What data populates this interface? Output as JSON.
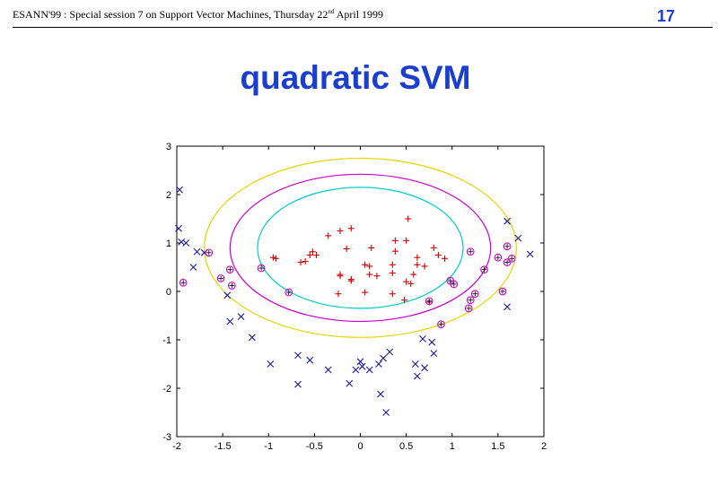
{
  "header": {
    "left_main": "ESANN'99 :  Special session 7 on Support Vector Machines, Thursday 22",
    "left_sup": "nd",
    "left_tail": " April 1999",
    "page_number": "17"
  },
  "slide": {
    "title": "quadratic SVM"
  },
  "chart_data": {
    "type": "scatter",
    "title": "",
    "xlabel": "",
    "ylabel": "",
    "xlim": [
      -2,
      2
    ],
    "ylim": [
      -3,
      3
    ],
    "xticks": [
      -2,
      -1.5,
      -1,
      -0.5,
      0,
      0.5,
      1,
      1.5,
      2
    ],
    "yticks": [
      3,
      2,
      1,
      0,
      -1,
      -2,
      -3
    ],
    "grid": false,
    "series": [
      {
        "marker": "plus",
        "color": "#cc0000",
        "points": [
          [
            -0.95,
            0.7
          ],
          [
            -0.92,
            0.68
          ],
          [
            -0.65,
            0.6
          ],
          [
            -0.6,
            0.62
          ],
          [
            -0.55,
            0.75
          ],
          [
            -0.52,
            0.82
          ],
          [
            -0.48,
            0.75
          ],
          [
            -0.35,
            1.15
          ],
          [
            -0.22,
            1.25
          ],
          [
            -0.1,
            1.3
          ],
          [
            -0.15,
            0.88
          ],
          [
            -0.22,
            0.35
          ],
          [
            -0.22,
            0.32
          ],
          [
            -0.1,
            0.22
          ],
          [
            -0.1,
            0.25
          ],
          [
            -0.24,
            -0.05
          ],
          [
            0.05,
            -0.02
          ],
          [
            0.05,
            0.55
          ],
          [
            0.12,
            0.9
          ],
          [
            0.1,
            0.52
          ],
          [
            0.1,
            0.35
          ],
          [
            0.18,
            0.32
          ],
          [
            0.35,
            0.55
          ],
          [
            0.35,
            0.38
          ],
          [
            0.38,
            0.83
          ],
          [
            0.38,
            1.05
          ],
          [
            0.5,
            1.05
          ],
          [
            0.52,
            1.5
          ],
          [
            0.5,
            0.2
          ],
          [
            0.55,
            0.16
          ],
          [
            0.58,
            0.35
          ],
          [
            0.62,
            0.7
          ],
          [
            0.62,
            0.55
          ],
          [
            0.7,
            0.52
          ],
          [
            0.8,
            0.9
          ],
          [
            0.85,
            0.75
          ],
          [
            0.92,
            0.68
          ],
          [
            0.35,
            -0.05
          ],
          [
            0.48,
            -0.18
          ],
          [
            0.75,
            -0.22
          ]
        ]
      },
      {
        "marker": "x",
        "color": "#1a1aa0",
        "points": [
          [
            -1.97,
            2.1
          ],
          [
            -1.98,
            1.3
          ],
          [
            -1.95,
            1.02
          ],
          [
            -1.9,
            1.0
          ],
          [
            -1.82,
            0.5
          ],
          [
            -1.78,
            0.82
          ],
          [
            -1.7,
            0.8
          ],
          [
            -1.45,
            -0.08
          ],
          [
            -1.42,
            -0.62
          ],
          [
            -1.3,
            -0.52
          ],
          [
            -1.18,
            -0.95
          ],
          [
            -0.98,
            -1.5
          ],
          [
            -0.68,
            -1.32
          ],
          [
            -0.68,
            -1.92
          ],
          [
            -0.55,
            -1.42
          ],
          [
            -0.35,
            -1.62
          ],
          [
            -0.12,
            -1.9
          ],
          [
            -0.05,
            -1.62
          ],
          [
            0.0,
            -1.45
          ],
          [
            0.02,
            -1.55
          ],
          [
            0.1,
            -1.62
          ],
          [
            0.2,
            -1.5
          ],
          [
            0.25,
            -1.38
          ],
          [
            0.32,
            -1.25
          ],
          [
            0.22,
            -2.12
          ],
          [
            0.28,
            -2.5
          ],
          [
            0.6,
            -1.5
          ],
          [
            0.62,
            -1.75
          ],
          [
            0.7,
            -1.58
          ],
          [
            0.68,
            -0.98
          ],
          [
            0.78,
            -1.05
          ],
          [
            0.8,
            -1.28
          ],
          [
            1.6,
            1.45
          ],
          [
            1.72,
            1.1
          ],
          [
            1.85,
            0.77
          ],
          [
            1.6,
            -0.32
          ]
        ]
      },
      {
        "marker": "circle",
        "color": "#cc00cc",
        "points": [
          [
            -1.93,
            0.18
          ],
          [
            -1.65,
            0.8
          ],
          [
            -1.52,
            0.27
          ],
          [
            -1.42,
            0.45
          ],
          [
            -1.4,
            0.12
          ],
          [
            -1.08,
            0.48
          ],
          [
            -0.78,
            -0.02
          ],
          [
            0.75,
            -0.2
          ],
          [
            0.88,
            -0.68
          ],
          [
            0.98,
            0.22
          ],
          [
            1.02,
            0.15
          ],
          [
            1.18,
            -0.35
          ],
          [
            1.2,
            -0.18
          ],
          [
            1.2,
            0.82
          ],
          [
            1.25,
            -0.05
          ],
          [
            1.35,
            0.45
          ],
          [
            1.5,
            0.7
          ],
          [
            1.55,
            0.0
          ],
          [
            1.6,
            0.93
          ],
          [
            1.6,
            0.6
          ],
          [
            1.65,
            0.68
          ]
        ]
      }
    ],
    "contours": [
      {
        "color": "#e8d400",
        "center": [
          0.0,
          0.9
        ],
        "rx": 1.7,
        "ry": 1.85
      },
      {
        "color": "#cc00cc",
        "center": [
          0.0,
          0.9
        ],
        "rx": 1.42,
        "ry": 1.52
      },
      {
        "color": "#00cccc",
        "center": [
          0.0,
          0.9
        ],
        "rx": 1.12,
        "ry": 1.25
      }
    ],
    "cross_color": "#000000"
  }
}
